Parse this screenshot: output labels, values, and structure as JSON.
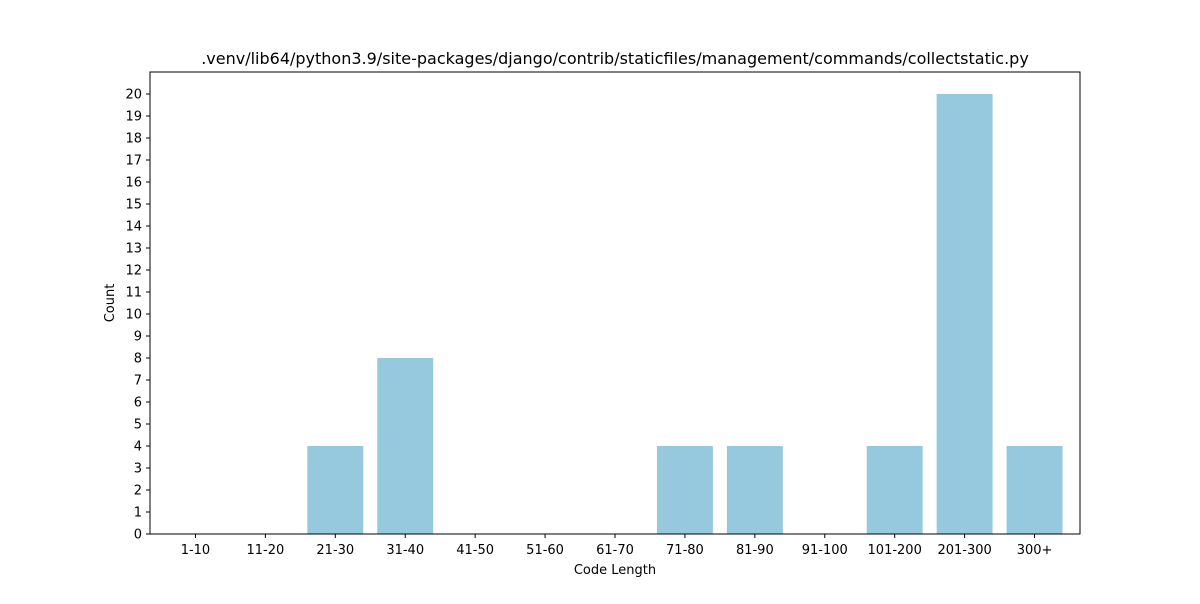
{
  "chart_data": {
    "type": "bar",
    "title": ".venv/lib64/python3.9/site-packages/django/contrib/staticfiles/management/commands/collectstatic.py",
    "xlabel": "Code Length",
    "ylabel": "Count",
    "categories": [
      "1-10",
      "11-20",
      "21-30",
      "31-40",
      "41-50",
      "51-60",
      "61-70",
      "71-80",
      "81-90",
      "91-100",
      "101-200",
      "201-300",
      "300+"
    ],
    "values": [
      0,
      0,
      4,
      8,
      0,
      0,
      0,
      4,
      4,
      0,
      4,
      20,
      4
    ],
    "ylim": [
      0,
      21
    ],
    "yticks": [
      0,
      1,
      2,
      3,
      4,
      5,
      6,
      7,
      8,
      9,
      10,
      11,
      12,
      13,
      14,
      15,
      16,
      17,
      18,
      19,
      20
    ],
    "bar_color": "#96c9de",
    "grid": false,
    "legend": "none"
  }
}
